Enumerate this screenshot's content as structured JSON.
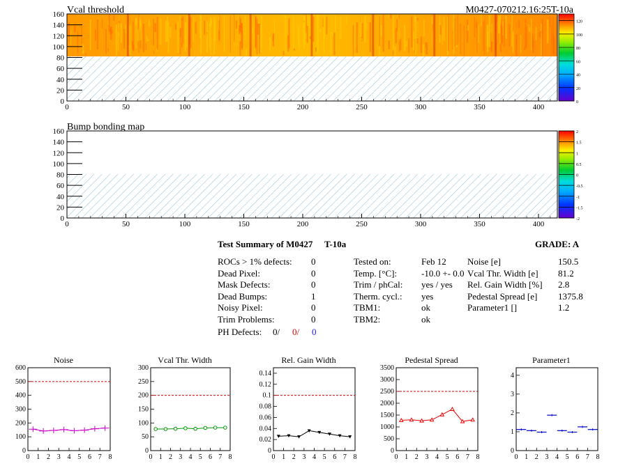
{
  "header": {
    "map1_title": "Vcal threshold",
    "module_id": "M0427-070212.16:25T-10a",
    "map2_title": "Bump bonding map"
  },
  "maps": {
    "x_ticks": [
      "0",
      "50",
      "100",
      "150",
      "200",
      "250",
      "300",
      "350",
      "400"
    ],
    "y_ticks": [
      "0",
      "20",
      "40",
      "60",
      "80",
      "100",
      "120",
      "140",
      "160"
    ],
    "x_range": [
      0,
      416
    ],
    "y_range": [
      0,
      160
    ],
    "filled_rows": [
      80,
      160
    ],
    "roc_boundaries": [
      52,
      104,
      156,
      208,
      260,
      312,
      364
    ],
    "colorbar1_ticks": [
      "0",
      "20",
      "40",
      "60",
      "80",
      "100",
      "120"
    ],
    "colorbar1_range": [
      0,
      130
    ],
    "colorbar2_ticks": [
      "-2",
      "-1.5",
      "-1",
      "-0.5",
      "0",
      "0.5",
      "1",
      "1.5",
      "2"
    ],
    "colorbar2_range": [
      -2,
      2
    ]
  },
  "summary": {
    "title": "Test Summary of M0427",
    "temp_label": "T-10a",
    "grade": "GRADE:  A",
    "defects": [
      {
        "label": "ROCs > 1% defects:",
        "value": "0"
      },
      {
        "label": "Dead Pixel:",
        "value": "0"
      },
      {
        "label": "Mask Defects:",
        "value": "0"
      },
      {
        "label": "Dead Bumps:",
        "value": "1"
      },
      {
        "label": "Noisy Pixel:",
        "value": "0"
      },
      {
        "label": "Trim Problems:",
        "value": "0"
      }
    ],
    "ph_defects": {
      "label": "PH Defects:",
      "v1": "0/",
      "v2": "0/",
      "v3": "0"
    },
    "tests": [
      {
        "label": "Tested on:",
        "value": "Feb 12"
      },
      {
        "label": "Temp. [°C]:",
        "value": "-10.0 +- 0.0"
      },
      {
        "label": "Trim / phCal:",
        "value": "yes / yes"
      },
      {
        "label": "Therm. cycl.:",
        "value": "yes"
      },
      {
        "label": "TBM1:",
        "value": "ok"
      },
      {
        "label": "TBM2:",
        "value": "ok"
      }
    ],
    "params": [
      {
        "label": "Noise [e]",
        "value": "150.5"
      },
      {
        "label": "Vcal Thr. Width [e]",
        "value": "81.2"
      },
      {
        "label": "Rel. Gain Width [%]",
        "value": "2.8"
      },
      {
        "label": "Pedestal Spread [e]",
        "value": "1375.8"
      },
      {
        "label": "Parameter1 []",
        "value": "1.2"
      }
    ]
  },
  "colors": {
    "noise": "#cc00cc",
    "vcal": "#009900",
    "gain": "#000000",
    "pedestal": "#ee0000",
    "param": "#0000cc",
    "cut_line": "#cc0000",
    "hatch": "#9ec8d8"
  },
  "chart_data": [
    {
      "type": "line",
      "title": "Noise",
      "x": [
        0.5,
        1.5,
        2.5,
        3.5,
        4.5,
        5.5,
        6.5,
        7.5
      ],
      "values": [
        155,
        142,
        146,
        152,
        144,
        148,
        158,
        163
      ],
      "xlim": [
        0,
        8
      ],
      "ylim": [
        0,
        600
      ],
      "yticks": [
        "0",
        "100",
        "200",
        "300",
        "400",
        "500",
        "600"
      ],
      "cut": 500,
      "style": "cross"
    },
    {
      "type": "line",
      "title": "Vcal Thr. Width",
      "x": [
        0.5,
        1.5,
        2.5,
        3.5,
        4.5,
        5.5,
        6.5,
        7.5
      ],
      "values": [
        78,
        78,
        79,
        81,
        79,
        82,
        83,
        83
      ],
      "xlim": [
        0,
        8
      ],
      "ylim": [
        0,
        300
      ],
      "yticks": [
        "0",
        "50",
        "100",
        "150",
        "200",
        "250",
        "300"
      ],
      "cut": 200,
      "style": "circle"
    },
    {
      "type": "line",
      "title": "Rel. Gain Width",
      "x": [
        0.5,
        1.5,
        2.5,
        3.5,
        4.5,
        5.5,
        6.5,
        7.5
      ],
      "values": [
        0.026,
        0.027,
        0.025,
        0.036,
        0.033,
        0.03,
        0.027,
        0.025
      ],
      "xlim": [
        0,
        8
      ],
      "ylim": [
        0,
        0.15
      ],
      "yticks": [
        "0",
        "0.02",
        "0.04",
        "0.06",
        "0.08",
        "0.1",
        "0.12",
        "0.14"
      ],
      "cut": 0.1,
      "style": "tri"
    },
    {
      "type": "line",
      "title": "Pedestal Spread",
      "x": [
        0.5,
        1.5,
        2.5,
        3.5,
        4.5,
        5.5,
        6.5,
        7.5
      ],
      "values": [
        1280,
        1300,
        1260,
        1300,
        1520,
        1750,
        1230,
        1300
      ],
      "xlim": [
        0,
        8
      ],
      "ylim": [
        0,
        3500
      ],
      "yticks": [
        "0",
        "500",
        "1000",
        "1500",
        "2000",
        "2500",
        "3000",
        "3500"
      ],
      "cut": 2500,
      "style": "tri-open"
    },
    {
      "type": "scatter",
      "title": "Parameter1",
      "x": [
        0.5,
        1.5,
        2.5,
        3.5,
        4.5,
        5.5,
        6.5,
        7.5
      ],
      "values": [
        1.12,
        1.06,
        0.98,
        1.88,
        1.06,
        0.98,
        1.26,
        1.12
      ],
      "xlim": [
        0,
        8
      ],
      "ylim": [
        0,
        4.4
      ],
      "yticks": [
        "0",
        "1",
        "2",
        "3",
        "4"
      ],
      "cut": null,
      "style": "hbar"
    }
  ]
}
